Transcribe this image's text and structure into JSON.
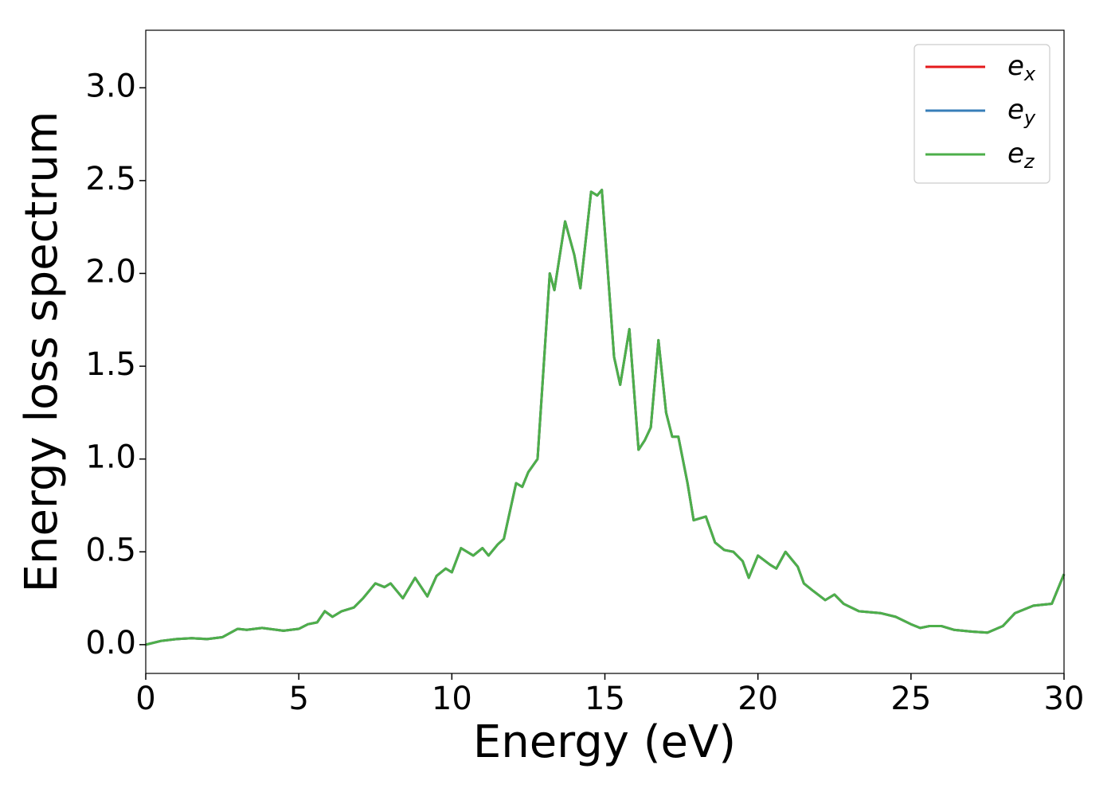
{
  "chart_data": {
    "type": "line",
    "xlabel": "Energy (eV)",
    "ylabel": "Energy loss spectrum",
    "x": [
      0,
      0.5,
      1,
      1.5,
      2,
      2.5,
      3,
      3.3,
      3.8,
      4.5,
      5,
      5.3,
      5.6,
      5.85,
      6.1,
      6.4,
      6.8,
      7.1,
      7.5,
      7.8,
      8.0,
      8.4,
      8.8,
      9.2,
      9.5,
      9.8,
      10.0,
      10.3,
      10.7,
      11.0,
      11.2,
      11.5,
      11.7,
      12.1,
      12.3,
      12.5,
      12.8,
      13.2,
      13.35,
      13.7,
      14.0,
      14.2,
      14.55,
      14.75,
      14.9,
      15.1,
      15.3,
      15.5,
      15.8,
      16.1,
      16.3,
      16.5,
      16.75,
      17.0,
      17.2,
      17.4,
      17.7,
      17.9,
      18.3,
      18.6,
      18.9,
      19.2,
      19.5,
      19.7,
      20.0,
      20.4,
      20.6,
      20.9,
      21.3,
      21.5,
      21.8,
      22.2,
      22.5,
      22.8,
      23.3,
      24.0,
      24.5,
      25.0,
      25.3,
      25.6,
      26.0,
      26.4,
      27.0,
      27.5,
      28.0,
      28.4,
      29.0,
      29.6,
      30.0
    ],
    "series": [
      {
        "name": "ex",
        "color": "#e41a1c",
        "values": [
          0.0,
          0.02,
          0.03,
          0.035,
          0.03,
          0.04,
          0.085,
          0.08,
          0.09,
          0.075,
          0.085,
          0.11,
          0.12,
          0.18,
          0.15,
          0.18,
          0.2,
          0.25,
          0.33,
          0.31,
          0.33,
          0.25,
          0.36,
          0.26,
          0.37,
          0.41,
          0.39,
          0.52,
          0.48,
          0.52,
          0.48,
          0.54,
          0.57,
          0.87,
          0.85,
          0.93,
          1.0,
          2.0,
          1.91,
          2.28,
          2.1,
          1.92,
          2.44,
          2.42,
          2.45,
          2.0,
          1.55,
          1.4,
          1.7,
          1.05,
          1.1,
          1.17,
          1.64,
          1.25,
          1.12,
          1.12,
          0.87,
          0.67,
          0.69,
          0.55,
          0.51,
          0.5,
          0.45,
          0.36,
          0.48,
          0.43,
          0.41,
          0.5,
          0.42,
          0.33,
          0.29,
          0.24,
          0.27,
          0.22,
          0.18,
          0.17,
          0.15,
          0.11,
          0.09,
          0.1,
          0.1,
          0.08,
          0.07,
          0.065,
          0.1,
          0.17,
          0.21,
          0.22,
          0.38
        ]
      },
      {
        "name": "ey",
        "color": "#377eb8",
        "values": [
          0.0,
          0.02,
          0.03,
          0.035,
          0.03,
          0.04,
          0.085,
          0.08,
          0.09,
          0.075,
          0.085,
          0.11,
          0.12,
          0.18,
          0.15,
          0.18,
          0.2,
          0.25,
          0.33,
          0.31,
          0.33,
          0.25,
          0.36,
          0.26,
          0.37,
          0.41,
          0.39,
          0.52,
          0.48,
          0.52,
          0.48,
          0.54,
          0.57,
          0.87,
          0.85,
          0.93,
          1.0,
          2.0,
          1.91,
          2.28,
          2.1,
          1.92,
          2.44,
          2.42,
          2.45,
          2.0,
          1.55,
          1.4,
          1.7,
          1.05,
          1.1,
          1.17,
          1.64,
          1.25,
          1.12,
          1.12,
          0.87,
          0.67,
          0.69,
          0.55,
          0.51,
          0.5,
          0.45,
          0.36,
          0.48,
          0.43,
          0.41,
          0.5,
          0.42,
          0.33,
          0.29,
          0.24,
          0.27,
          0.22,
          0.18,
          0.17,
          0.15,
          0.11,
          0.09,
          0.1,
          0.1,
          0.08,
          0.07,
          0.065,
          0.1,
          0.17,
          0.21,
          0.22,
          0.38
        ]
      },
      {
        "name": "ez",
        "color": "#4daf4a",
        "values": [
          0.0,
          0.02,
          0.03,
          0.035,
          0.03,
          0.04,
          0.085,
          0.08,
          0.09,
          0.075,
          0.085,
          0.11,
          0.12,
          0.18,
          0.15,
          0.18,
          0.2,
          0.25,
          0.33,
          0.31,
          0.33,
          0.25,
          0.36,
          0.26,
          0.37,
          0.41,
          0.39,
          0.52,
          0.48,
          0.52,
          0.48,
          0.54,
          0.57,
          0.87,
          0.85,
          0.93,
          1.0,
          2.0,
          1.91,
          2.28,
          2.1,
          1.92,
          2.44,
          2.42,
          2.45,
          2.0,
          1.55,
          1.4,
          1.7,
          1.05,
          1.1,
          1.17,
          1.64,
          1.25,
          1.12,
          1.12,
          0.87,
          0.67,
          0.69,
          0.55,
          0.51,
          0.5,
          0.45,
          0.36,
          0.48,
          0.43,
          0.41,
          0.5,
          0.42,
          0.33,
          0.29,
          0.24,
          0.27,
          0.22,
          0.18,
          0.17,
          0.15,
          0.11,
          0.09,
          0.1,
          0.1,
          0.08,
          0.07,
          0.065,
          0.1,
          0.17,
          0.21,
          0.22,
          0.38
        ]
      }
    ],
    "xlim": [
      0,
      30
    ],
    "xticks": [
      0,
      5,
      10,
      15,
      20,
      25,
      30
    ],
    "ylim": [
      -0.155,
      3.31
    ],
    "yticks": [
      {
        "value": 0,
        "label": "0.0"
      },
      {
        "value": 0.5,
        "label": "0.5"
      },
      {
        "value": 1,
        "label": "1.0"
      },
      {
        "value": 1.5,
        "label": "1.5"
      },
      {
        "value": 2,
        "label": "2.0"
      },
      {
        "value": 2.5,
        "label": "2.5"
      },
      {
        "value": 3,
        "label": "3.0"
      }
    ],
    "grid": false,
    "legend": "upper right"
  }
}
